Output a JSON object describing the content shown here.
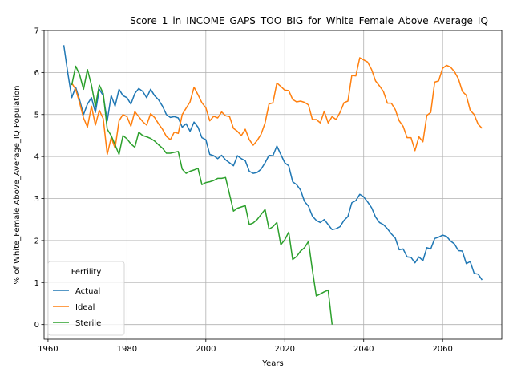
{
  "chart_data": {
    "type": "line",
    "title": "Score_1_in_INCOME_GAPS_TOO_BIG_for_White_Female_Above_Average_IQ",
    "xlabel": "Years",
    "ylabel": "% of White_Female Above_Average_IQ Population",
    "xlim": [
      1959,
      2075
    ],
    "ylim": [
      -0.35,
      7
    ],
    "xticks": [
      1960,
      1980,
      2000,
      2020,
      2040,
      2060
    ],
    "yticks": [
      0,
      1,
      2,
      3,
      4,
      5,
      6,
      7
    ],
    "grid": true,
    "legend": {
      "title": "Fertility",
      "placement": "lower-left"
    },
    "series": [
      {
        "name": "Actual",
        "color": "#1f77b4",
        "points": [
          [
            1964,
            6.65
          ],
          [
            1965,
            6.0
          ],
          [
            1966,
            5.4
          ],
          [
            1967,
            5.65
          ],
          [
            1968,
            5.35
          ],
          [
            1969,
            5.0
          ],
          [
            1970,
            5.25
          ],
          [
            1971,
            5.4
          ],
          [
            1972,
            5.05
          ],
          [
            1973,
            5.6
          ],
          [
            1974,
            5.45
          ],
          [
            1975,
            4.85
          ],
          [
            1976,
            5.45
          ],
          [
            1977,
            5.2
          ],
          [
            1978,
            5.6
          ],
          [
            1979,
            5.45
          ],
          [
            1980,
            5.4
          ],
          [
            1981,
            5.25
          ],
          [
            1982,
            5.5
          ],
          [
            1983,
            5.62
          ],
          [
            1984,
            5.55
          ],
          [
            1985,
            5.4
          ],
          [
            1986,
            5.6
          ],
          [
            1987,
            5.45
          ],
          [
            1988,
            5.35
          ],
          [
            1989,
            5.2
          ],
          [
            1990,
            5.0
          ],
          [
            1991,
            4.93
          ],
          [
            1992,
            4.95
          ],
          [
            1993,
            4.92
          ],
          [
            1994,
            4.7
          ],
          [
            1995,
            4.78
          ],
          [
            1996,
            4.6
          ],
          [
            1997,
            4.82
          ],
          [
            1998,
            4.7
          ],
          [
            1999,
            4.45
          ],
          [
            2000,
            4.4
          ],
          [
            2001,
            4.05
          ],
          [
            2002,
            4.02
          ],
          [
            2003,
            3.95
          ],
          [
            2004,
            4.03
          ],
          [
            2005,
            3.92
          ],
          [
            2006,
            3.85
          ],
          [
            2007,
            3.78
          ],
          [
            2008,
            4.02
          ],
          [
            2009,
            3.95
          ],
          [
            2010,
            3.9
          ],
          [
            2011,
            3.65
          ],
          [
            2012,
            3.6
          ],
          [
            2013,
            3.62
          ],
          [
            2014,
            3.7
          ],
          [
            2015,
            3.85
          ],
          [
            2016,
            4.03
          ],
          [
            2017,
            4.02
          ],
          [
            2018,
            4.25
          ],
          [
            2019,
            4.05
          ],
          [
            2020,
            3.85
          ],
          [
            2021,
            3.78
          ],
          [
            2022,
            3.4
          ],
          [
            2023,
            3.33
          ],
          [
            2024,
            3.2
          ],
          [
            2025,
            2.93
          ],
          [
            2026,
            2.82
          ],
          [
            2027,
            2.58
          ],
          [
            2028,
            2.48
          ],
          [
            2029,
            2.43
          ],
          [
            2030,
            2.5
          ],
          [
            2031,
            2.38
          ],
          [
            2032,
            2.26
          ],
          [
            2033,
            2.28
          ],
          [
            2034,
            2.33
          ],
          [
            2035,
            2.48
          ],
          [
            2036,
            2.57
          ],
          [
            2037,
            2.9
          ],
          [
            2038,
            2.95
          ],
          [
            2039,
            3.1
          ],
          [
            2040,
            3.04
          ],
          [
            2041,
            2.92
          ],
          [
            2042,
            2.78
          ],
          [
            2043,
            2.56
          ],
          [
            2044,
            2.43
          ],
          [
            2045,
            2.38
          ],
          [
            2046,
            2.28
          ],
          [
            2047,
            2.16
          ],
          [
            2048,
            2.06
          ],
          [
            2049,
            1.78
          ],
          [
            2050,
            1.8
          ],
          [
            2051,
            1.61
          ],
          [
            2052,
            1.6
          ],
          [
            2053,
            1.47
          ],
          [
            2054,
            1.61
          ],
          [
            2055,
            1.52
          ],
          [
            2056,
            1.83
          ],
          [
            2057,
            1.8
          ],
          [
            2058,
            2.05
          ],
          [
            2059,
            2.08
          ],
          [
            2060,
            2.13
          ],
          [
            2061,
            2.1
          ],
          [
            2062,
            1.99
          ],
          [
            2063,
            1.92
          ],
          [
            2064,
            1.76
          ],
          [
            2065,
            1.75
          ],
          [
            2066,
            1.45
          ],
          [
            2067,
            1.5
          ],
          [
            2068,
            1.22
          ],
          [
            2069,
            1.2
          ],
          [
            2070,
            1.06
          ]
        ]
      },
      {
        "name": "Ideal",
        "color": "#ff7f0e",
        "points": [
          [
            1966,
            5.75
          ],
          [
            1967,
            5.6
          ],
          [
            1968,
            5.28
          ],
          [
            1969,
            4.92
          ],
          [
            1970,
            4.7
          ],
          [
            1971,
            5.2
          ],
          [
            1972,
            4.75
          ],
          [
            1973,
            5.1
          ],
          [
            1974,
            4.9
          ],
          [
            1975,
            4.05
          ],
          [
            1976,
            4.45
          ],
          [
            1977,
            4.2
          ],
          [
            1978,
            4.85
          ],
          [
            1979,
            5.0
          ],
          [
            1980,
            4.95
          ],
          [
            1981,
            4.72
          ],
          [
            1982,
            5.07
          ],
          [
            1983,
            4.95
          ],
          [
            1984,
            4.83
          ],
          [
            1985,
            4.75
          ],
          [
            1986,
            5.02
          ],
          [
            1987,
            4.93
          ],
          [
            1988,
            4.78
          ],
          [
            1989,
            4.65
          ],
          [
            1990,
            4.48
          ],
          [
            1991,
            4.4
          ],
          [
            1992,
            4.58
          ],
          [
            1993,
            4.55
          ],
          [
            1994,
            5.0
          ],
          [
            1995,
            5.15
          ],
          [
            1996,
            5.3
          ],
          [
            1997,
            5.65
          ],
          [
            1998,
            5.47
          ],
          [
            1999,
            5.28
          ],
          [
            2000,
            5.16
          ],
          [
            2001,
            4.85
          ],
          [
            2002,
            4.96
          ],
          [
            2003,
            4.92
          ],
          [
            2004,
            5.06
          ],
          [
            2005,
            4.97
          ],
          [
            2006,
            4.95
          ],
          [
            2007,
            4.67
          ],
          [
            2008,
            4.6
          ],
          [
            2009,
            4.5
          ],
          [
            2010,
            4.65
          ],
          [
            2011,
            4.4
          ],
          [
            2012,
            4.27
          ],
          [
            2013,
            4.38
          ],
          [
            2014,
            4.53
          ],
          [
            2015,
            4.8
          ],
          [
            2016,
            5.25
          ],
          [
            2017,
            5.28
          ],
          [
            2018,
            5.75
          ],
          [
            2019,
            5.67
          ],
          [
            2020,
            5.58
          ],
          [
            2021,
            5.57
          ],
          [
            2022,
            5.36
          ],
          [
            2023,
            5.3
          ],
          [
            2024,
            5.32
          ],
          [
            2025,
            5.29
          ],
          [
            2026,
            5.23
          ],
          [
            2027,
            4.88
          ],
          [
            2028,
            4.88
          ],
          [
            2029,
            4.8
          ],
          [
            2030,
            5.08
          ],
          [
            2031,
            4.8
          ],
          [
            2032,
            4.95
          ],
          [
            2033,
            4.88
          ],
          [
            2034,
            5.05
          ],
          [
            2035,
            5.28
          ],
          [
            2036,
            5.32
          ],
          [
            2037,
            5.93
          ],
          [
            2038,
            5.92
          ],
          [
            2039,
            6.35
          ],
          [
            2040,
            6.3
          ],
          [
            2041,
            6.25
          ],
          [
            2042,
            6.07
          ],
          [
            2043,
            5.8
          ],
          [
            2044,
            5.68
          ],
          [
            2045,
            5.55
          ],
          [
            2046,
            5.27
          ],
          [
            2047,
            5.27
          ],
          [
            2048,
            5.12
          ],
          [
            2049,
            4.85
          ],
          [
            2050,
            4.72
          ],
          [
            2051,
            4.45
          ],
          [
            2052,
            4.45
          ],
          [
            2053,
            4.14
          ],
          [
            2054,
            4.47
          ],
          [
            2055,
            4.35
          ],
          [
            2056,
            4.98
          ],
          [
            2057,
            5.05
          ],
          [
            2058,
            5.77
          ],
          [
            2059,
            5.8
          ],
          [
            2060,
            6.1
          ],
          [
            2061,
            6.17
          ],
          [
            2062,
            6.13
          ],
          [
            2063,
            6.02
          ],
          [
            2064,
            5.85
          ],
          [
            2065,
            5.55
          ],
          [
            2066,
            5.46
          ],
          [
            2067,
            5.1
          ],
          [
            2068,
            5.0
          ],
          [
            2069,
            4.77
          ],
          [
            2070,
            4.67
          ]
        ]
      },
      {
        "name": "Sterile",
        "color": "#2ca02c",
        "points": [
          [
            1966,
            5.7
          ],
          [
            1967,
            6.15
          ],
          [
            1968,
            5.95
          ],
          [
            1969,
            5.6
          ],
          [
            1970,
            6.07
          ],
          [
            1971,
            5.7
          ],
          [
            1972,
            5.2
          ],
          [
            1973,
            5.7
          ],
          [
            1974,
            5.5
          ],
          [
            1975,
            4.65
          ],
          [
            1976,
            4.5
          ],
          [
            1977,
            4.28
          ],
          [
            1978,
            4.05
          ],
          [
            1979,
            4.5
          ],
          [
            1980,
            4.42
          ],
          [
            1981,
            4.3
          ],
          [
            1982,
            4.22
          ],
          [
            1983,
            4.58
          ],
          [
            1984,
            4.5
          ],
          [
            1985,
            4.47
          ],
          [
            1986,
            4.43
          ],
          [
            1987,
            4.37
          ],
          [
            1988,
            4.28
          ],
          [
            1989,
            4.2
          ],
          [
            1990,
            4.08
          ],
          [
            1991,
            4.08
          ],
          [
            1992,
            4.1
          ],
          [
            1993,
            4.12
          ],
          [
            1994,
            3.7
          ],
          [
            1995,
            3.6
          ],
          [
            1996,
            3.65
          ],
          [
            1997,
            3.68
          ],
          [
            1998,
            3.72
          ],
          [
            1999,
            3.33
          ],
          [
            2000,
            3.38
          ],
          [
            2001,
            3.4
          ],
          [
            2002,
            3.43
          ],
          [
            2003,
            3.48
          ],
          [
            2004,
            3.48
          ],
          [
            2005,
            3.5
          ],
          [
            2006,
            3.1
          ],
          [
            2007,
            2.7
          ],
          [
            2008,
            2.77
          ],
          [
            2009,
            2.8
          ],
          [
            2010,
            2.83
          ],
          [
            2011,
            2.38
          ],
          [
            2012,
            2.42
          ],
          [
            2013,
            2.5
          ],
          [
            2014,
            2.62
          ],
          [
            2015,
            2.74
          ],
          [
            2016,
            2.27
          ],
          [
            2017,
            2.33
          ],
          [
            2018,
            2.43
          ],
          [
            2019,
            1.9
          ],
          [
            2020,
            2.02
          ],
          [
            2021,
            2.2
          ],
          [
            2022,
            1.55
          ],
          [
            2023,
            1.62
          ],
          [
            2024,
            1.75
          ],
          [
            2025,
            1.83
          ],
          [
            2026,
            1.98
          ],
          [
            2027,
            1.3
          ],
          [
            2028,
            0.68
          ],
          [
            2029,
            0.73
          ],
          [
            2030,
            0.78
          ],
          [
            2031,
            0.82
          ],
          [
            2032,
            0.0
          ]
        ]
      }
    ]
  }
}
